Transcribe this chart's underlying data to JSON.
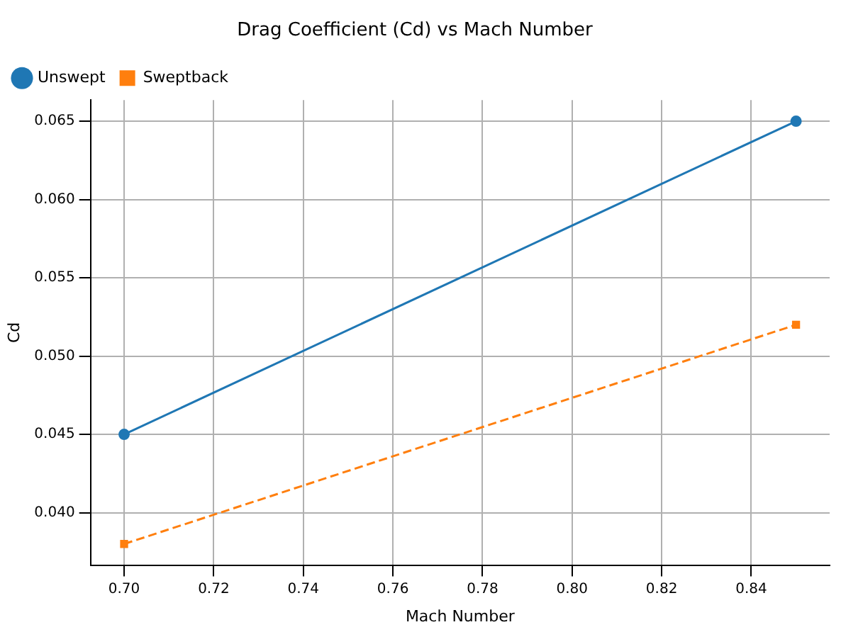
{
  "chart_data": {
    "type": "line",
    "title": "Drag Coefficient (Cd) vs Mach Number",
    "xlabel": "Mach Number",
    "ylabel": "Cd",
    "x": [
      0.7,
      0.85
    ],
    "series": [
      {
        "name": "Unswept",
        "color": "#1f77b4",
        "values": [
          0.045,
          0.065
        ],
        "marker": "circle",
        "line_style": "solid"
      },
      {
        "name": "Sweptback",
        "color": "#ff7f0e",
        "values": [
          0.038,
          0.052
        ],
        "marker": "square",
        "line_style": "dashed"
      }
    ],
    "xlim": [
      0.6925,
      0.8575
    ],
    "ylim": [
      0.03665,
      0.06635
    ],
    "xticks": [
      {
        "value": 0.7,
        "label": "0.70"
      },
      {
        "value": 0.72,
        "label": "0.72"
      },
      {
        "value": 0.74,
        "label": "0.74"
      },
      {
        "value": 0.76,
        "label": "0.76"
      },
      {
        "value": 0.78,
        "label": "0.78"
      },
      {
        "value": 0.8,
        "label": "0.80"
      },
      {
        "value": 0.82,
        "label": "0.82"
      },
      {
        "value": 0.84,
        "label": "0.84"
      }
    ],
    "yticks": [
      {
        "value": 0.04,
        "label": "0.040"
      },
      {
        "value": 0.045,
        "label": "0.045"
      },
      {
        "value": 0.05,
        "label": "0.050"
      },
      {
        "value": 0.055,
        "label": "0.055"
      },
      {
        "value": 0.06,
        "label": "0.060"
      },
      {
        "value": 0.065,
        "label": "0.065"
      }
    ],
    "grid": true,
    "legend": "top left"
  }
}
